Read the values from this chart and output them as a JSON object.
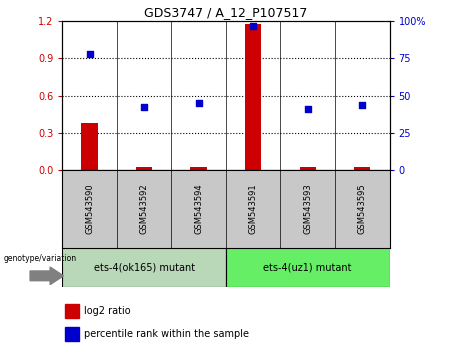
{
  "title": "GDS3747 / A_12_P107517",
  "samples": [
    "GSM543590",
    "GSM543592",
    "GSM543594",
    "GSM543591",
    "GSM543593",
    "GSM543595"
  ],
  "log2_ratio": [
    0.38,
    0.02,
    0.02,
    1.18,
    0.02,
    0.02
  ],
  "percentile_rank": [
    78,
    42,
    45,
    97,
    41,
    44
  ],
  "groups": [
    {
      "label": "ets-4(ok165) mutant",
      "color": "#90EE90"
    },
    {
      "label": "ets-4(uz1) mutant",
      "color": "#66DD66"
    }
  ],
  "bar_color": "#CC0000",
  "dot_color": "#0000CC",
  "left_axis_color": "#CC0000",
  "right_axis_color": "#0000CC",
  "left_ylim": [
    0,
    1.2
  ],
  "right_ylim": [
    0,
    100
  ],
  "left_yticks": [
    0,
    0.3,
    0.6,
    0.9,
    1.2
  ],
  "right_yticks": [
    0,
    25,
    50,
    75,
    100
  ],
  "right_yticklabels": [
    "0",
    "25",
    "50",
    "75",
    "100%"
  ],
  "background_color": "#FFFFFF",
  "legend_items": [
    {
      "label": "log2 ratio",
      "color": "#CC0000"
    },
    {
      "label": "percentile rank within the sample",
      "color": "#0000CC"
    }
  ],
  "genotype_label": "genotype/variation",
  "group1_color": "#B8D8B8",
  "group2_color": "#66EE66",
  "tick_area_color": "#C8C8C8",
  "bar_width": 0.3
}
